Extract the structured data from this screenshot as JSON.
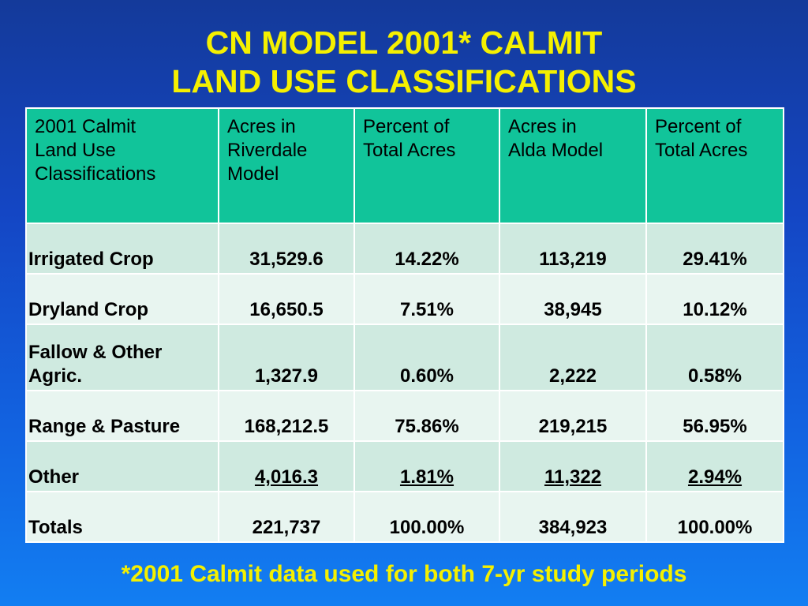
{
  "title": {
    "line1": "CN MODEL 2001* CALMIT",
    "line2": "LAND USE CLASSIFICATIONS"
  },
  "table": {
    "headers": [
      [
        "2001 Calmit",
        "Land Use",
        "Classifications"
      ],
      [
        "Acres in",
        "Riverdale",
        "Model"
      ],
      [
        "Percent of",
        "Total Acres"
      ],
      [
        "Acres in",
        "Alda Model"
      ],
      [
        "Percent of",
        "Total Acres"
      ]
    ],
    "rows": [
      {
        "label": [
          "Irrigated Crop"
        ],
        "riverdale_acres": "31,529.6",
        "riverdale_pct": "14.22%",
        "alda_acres": "113,219",
        "alda_pct": "29.41%"
      },
      {
        "label": [
          "Dryland Crop"
        ],
        "riverdale_acres": "16,650.5",
        "riverdale_pct": "7.51%",
        "alda_acres": "38,945",
        "alda_pct": "10.12%"
      },
      {
        "label": [
          "Fallow & Other",
          "Agric."
        ],
        "riverdale_acres": "1,327.9",
        "riverdale_pct": "0.60%",
        "alda_acres": "2,222",
        "alda_pct": "0.58%"
      },
      {
        "label": [
          "Range & Pasture"
        ],
        "riverdale_acres": "168,212.5",
        "riverdale_pct": "75.86%",
        "alda_acres": "219,215",
        "alda_pct": "56.95%"
      },
      {
        "label": [
          "Other"
        ],
        "riverdale_acres": "4,016.3",
        "riverdale_pct": "1.81%",
        "alda_acres": "11,322",
        "alda_pct": "2.94%"
      },
      {
        "label": [
          "Totals"
        ],
        "riverdale_acres": "221,737",
        "riverdale_pct": "100.00%",
        "alda_acres": "384,923",
        "alda_pct": "100.00%"
      }
    ]
  },
  "footnote": "*2001 Calmit data used for both 7-yr study periods",
  "colors": {
    "title_text": "#f5f000",
    "header_fill": "#11c49a",
    "row_band_dark": "#cfeae0",
    "row_band_light": "#e8f5f0",
    "background_top": "#143a9a",
    "background_bottom": "#127ef2"
  }
}
